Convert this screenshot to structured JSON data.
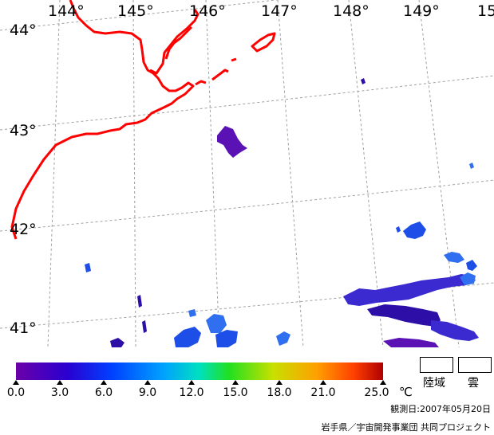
{
  "map": {
    "lon_labels": [
      "144°",
      "145°",
      "146°",
      "147°",
      "148°",
      "149°",
      "15"
    ],
    "lat_labels": [
      "44°",
      "43°",
      "42°",
      "41°"
    ],
    "coast_color": "#ff0000",
    "grid_color": "#a0a0a0",
    "sst_patch_colors": [
      "#2d0fa8",
      "#3a2ad0",
      "#1d4ee8",
      "#2f6ff0",
      "#5a12b5"
    ]
  },
  "legend": {
    "ticks": [
      "0.0",
      "3.0",
      "6.0",
      "9.0",
      "12.0",
      "15.0",
      "18.0",
      "21.0",
      "25.0"
    ],
    "unit": "℃",
    "colormap": [
      "#6a00a8",
      "#2a00d0",
      "#0040ff",
      "#00a0ff",
      "#00e0c0",
      "#20e020",
      "#c8e000",
      "#ffa000",
      "#ff4000",
      "#b00000"
    ],
    "land_label": "陸域",
    "cloud_label": "雲"
  },
  "footer": {
    "observation_date": "観測日:2007年05月20日",
    "credit": "岩手県／宇宙開発事業団 共同プロジェクト"
  }
}
